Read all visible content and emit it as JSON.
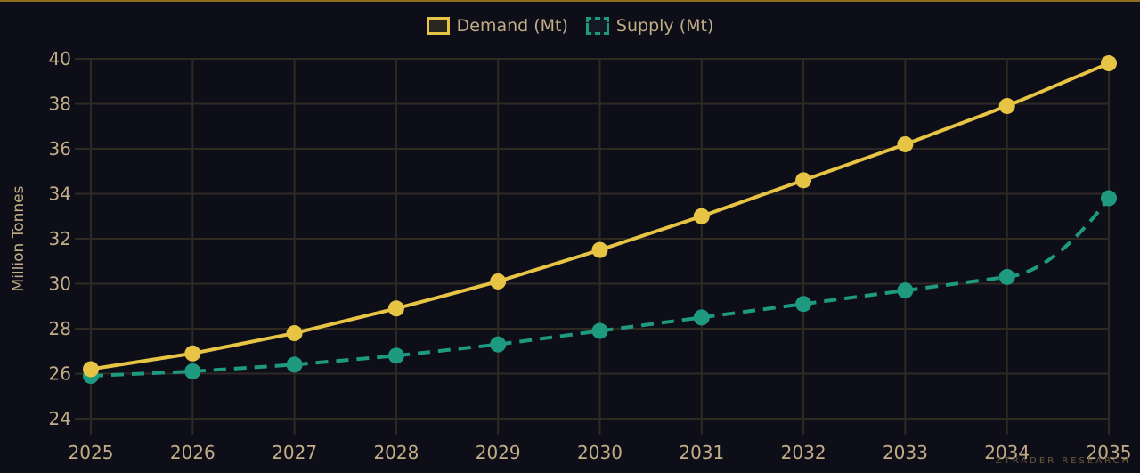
{
  "chart_data": {
    "type": "line",
    "title": "",
    "xlabel": "",
    "ylabel": "Million Tonnes",
    "ylim": [
      24,
      40
    ],
    "yticks": [
      24,
      26,
      28,
      30,
      32,
      34,
      36,
      38,
      40
    ],
    "grid": true,
    "legend_position": "top",
    "categories": [
      "2025",
      "2026",
      "2027",
      "2028",
      "2029",
      "2030",
      "2031",
      "2032",
      "2033",
      "2034",
      "2035"
    ],
    "series": [
      {
        "name": "Demand (Mt)",
        "color": "#e8c444",
        "style": "solid",
        "values": [
          26.2,
          26.9,
          27.8,
          28.9,
          30.1,
          31.5,
          33.0,
          34.6,
          36.2,
          37.9,
          39.8
        ]
      },
      {
        "name": "Supply (Mt)",
        "color": "#1e9a80",
        "style": "dashed",
        "values": [
          25.9,
          26.1,
          26.4,
          26.8,
          27.3,
          27.9,
          28.5,
          29.1,
          29.7,
          30.3,
          33.8
        ]
      }
    ]
  },
  "legend": {
    "demand": "Demand (Mt)",
    "supply": "Supply (Mt)"
  },
  "watermark": "ZTRADER RESEARCH",
  "colors": {
    "background": "#0e0e19",
    "grid": "#2e2a22",
    "text": "#c2ad86",
    "demand": "#e8c444",
    "supply": "#1e9a80"
  }
}
